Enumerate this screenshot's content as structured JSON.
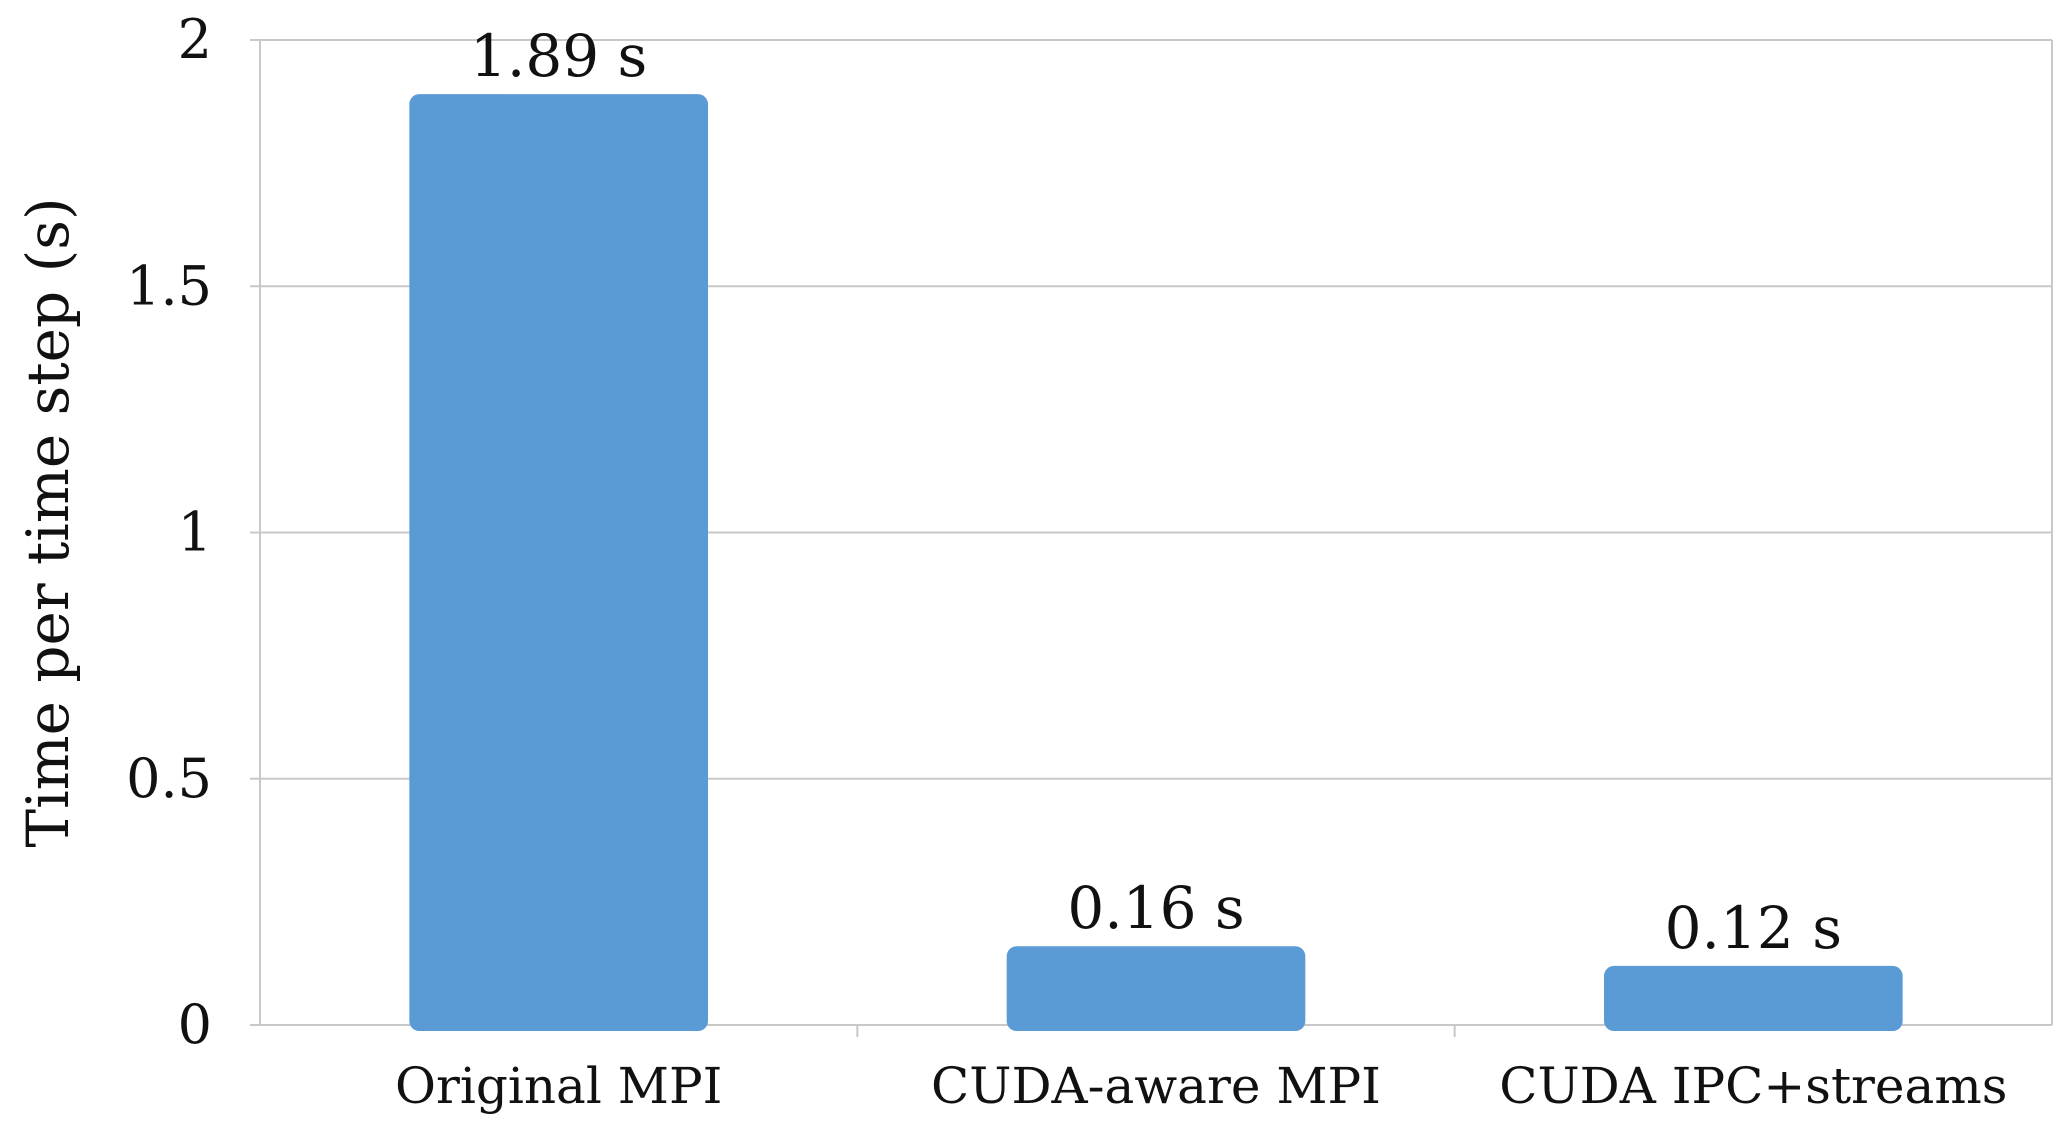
{
  "chart_data": {
    "type": "bar",
    "categories": [
      "Original MPI",
      "CUDA-aware MPI",
      "CUDA IPC+streams"
    ],
    "values": [
      1.89,
      0.16,
      0.12
    ],
    "data_labels": [
      "1.89 s",
      "0.16 s",
      "0.12 s"
    ],
    "title": "",
    "xlabel": "",
    "ylabel": "Time per time step (s)",
    "ylim": [
      0,
      2
    ],
    "yticks": [
      0,
      0.5,
      1,
      1.5,
      2
    ],
    "ytick_labels": [
      "0",
      "0.5",
      "1",
      "1.5",
      "2"
    ],
    "grid": true,
    "legend": "none",
    "bar_color": "#5b9bd5"
  }
}
